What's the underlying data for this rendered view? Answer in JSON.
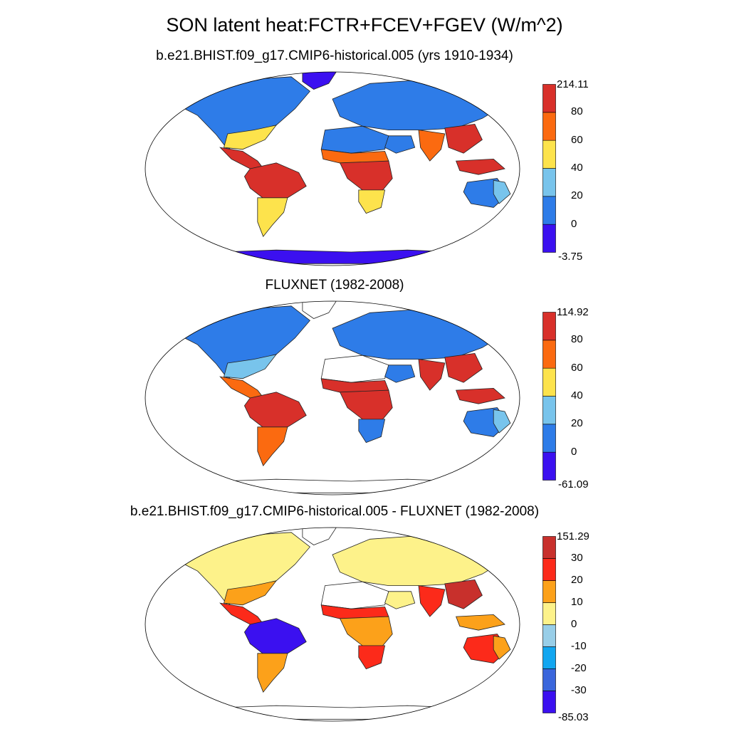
{
  "title": "SON latent heat:FCTR+FCEV+FGEV (W/m^2)",
  "panels": [
    {
      "id": "model",
      "title": "b.e21.BHIST.f09_g17.CMIP6-historical.005 (yrs 1910-1934)",
      "colorbar": {
        "colors": [
          "#3b10f0",
          "#2e7ce8",
          "#78c4ec",
          "#fde34c",
          "#fb6a10",
          "#d8302a"
        ],
        "labels": [
          "-3.75",
          "0",
          "20",
          "40",
          "60",
          "80",
          "214.11"
        ]
      },
      "regions": {
        "north-america": "#2e7ce8",
        "us-east": "#fde34c",
        "central-america": "#d8302a",
        "amazon": "#d8302a",
        "south-america-south": "#fde34c",
        "europe-asia": "#2e7ce8",
        "sahara": "#2e7ce8",
        "arabia": "#2e7ce8",
        "sahel": "#fb6a10",
        "central-africa": "#d8302a",
        "south-africa": "#fde34c",
        "india": "#fb6a10",
        "southeast-asia": "#d8302a",
        "indonesia": "#d8302a",
        "australia": "#2e7ce8",
        "australia-east": "#78c4ec",
        "greenland": "#3b10f0",
        "antarctica": "#3b10f0"
      }
    },
    {
      "id": "obs",
      "title": "FLUXNET (1982-2008)",
      "colorbar": {
        "colors": [
          "#3b10f0",
          "#2e7ce8",
          "#78c4ec",
          "#fde34c",
          "#fb6a10",
          "#d8302a"
        ],
        "labels": [
          "-61.09",
          "0",
          "20",
          "40",
          "60",
          "80",
          "114.92"
        ]
      },
      "regions": {
        "north-america": "#2e7ce8",
        "us-east": "#78c4ec",
        "central-america": "#fb6a10",
        "amazon": "#d8302a",
        "south-america-south": "#fb6a10",
        "europe-asia": "#2e7ce8",
        "sahara": "#ffffff",
        "arabia": "#2e7ce8",
        "sahel": "#d8302a",
        "central-africa": "#d8302a",
        "south-africa": "#2e7ce8",
        "india": "#d8302a",
        "southeast-asia": "#d8302a",
        "indonesia": "#d8302a",
        "australia": "#2e7ce8",
        "australia-east": "#78c4ec",
        "greenland": "none",
        "antarctica": "none"
      }
    },
    {
      "id": "diff",
      "title": "b.e21.BHIST.f09_g17.CMIP6-historical.005 - FLUXNET (1982-2008)",
      "colorbar": {
        "colors": [
          "#3b10f0",
          "#3a66dc",
          "#12a6f0",
          "#98cee8",
          "#fdf28a",
          "#fca11a",
          "#fc2a1a",
          "#c8302c"
        ],
        "labels": [
          "-85.03",
          "-30",
          "-20",
          "-10",
          "0",
          "10",
          "20",
          "30",
          "151.29"
        ]
      },
      "regions": {
        "north-america": "#fdf28a",
        "us-east": "#fca11a",
        "central-america": "#fc2a1a",
        "amazon": "#3b10f0",
        "south-america-south": "#fca11a",
        "europe-asia": "#fdf28a",
        "sahara": "#ffffff",
        "arabia": "#fdf28a",
        "sahel": "#fc2a1a",
        "central-africa": "#fca11a",
        "south-africa": "#fc2a1a",
        "india": "#fc2a1a",
        "southeast-asia": "#c8302c",
        "indonesia": "#fca11a",
        "australia": "#fc2a1a",
        "australia-east": "#fca11a",
        "greenland": "none",
        "antarctica": "none"
      }
    }
  ]
}
